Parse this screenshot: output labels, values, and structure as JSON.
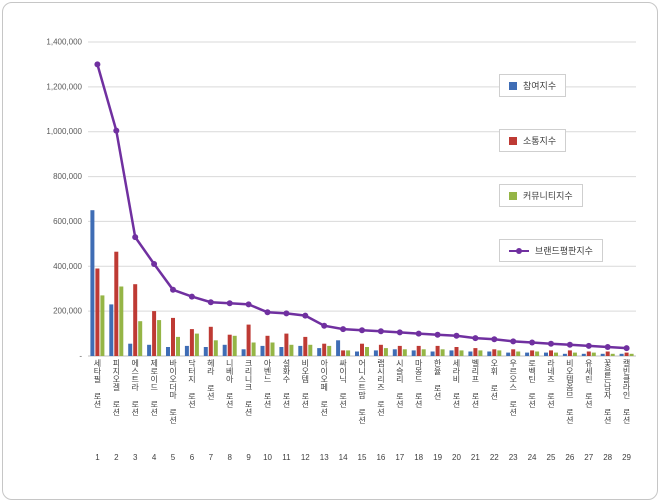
{
  "chart_data": {
    "type": "combo-bar-line",
    "title": "",
    "xlabel": "",
    "ylabel": "",
    "ylim": [
      0,
      1400000
    ],
    "ytick_step": 200000,
    "ytick_labels": [
      "1,400,000",
      "1,200,000",
      "1,000,000",
      "800,000",
      "600,000",
      "400,000",
      "200,000",
      "-"
    ],
    "grid": true,
    "legend_position": "right-inside",
    "categories": [
      "세타필 로션",
      "피지오겔 로션",
      "에스트라 로션",
      "제로이드 로션",
      "바이오더마 로션",
      "닥터지 로션",
      "헤라 로션",
      "니베아 로션",
      "크리니크 로션",
      "아벤느 로션",
      "설화수 로션",
      "비오템 로션",
      "아이오페 로션",
      "싸이닉 로션",
      "어니스트맘 로션",
      "랩시리즈 로션",
      "시슬리 로션",
      "마몽드 로션",
      "한율 로션",
      "세라비 로션",
      "벨리프 로션",
      "오휘 로션",
      "우르오스 로션",
      "로벡틴 로션",
      "라네즈 로션",
      "비오템옴므 로션",
      "유세린 로션",
      "꽃을든남자 로션",
      "캘빈클라인 로션"
    ],
    "category_ranks": [
      "1",
      "2",
      "3",
      "4",
      "5",
      "6",
      "7",
      "8",
      "9",
      "10",
      "11",
      "12",
      "13",
      "14",
      "15",
      "16",
      "17",
      "18",
      "19",
      "20",
      "21",
      "22",
      "23",
      "24",
      "25",
      "26",
      "27",
      "28",
      "29"
    ],
    "series": [
      {
        "name": "참여지수",
        "chart": "bar",
        "color": "#3F6DB5",
        "values": [
          650000,
          230000,
          55000,
          50000,
          40000,
          45000,
          40000,
          50000,
          30000,
          45000,
          40000,
          45000,
          35000,
          70000,
          20000,
          25000,
          30000,
          25000,
          20000,
          25000,
          20000,
          20000,
          15000,
          15000,
          15000,
          10000,
          10000,
          10000,
          10000
        ]
      },
      {
        "name": "소통지수",
        "chart": "bar",
        "color": "#BE3A34",
        "values": [
          390000,
          465000,
          320000,
          200000,
          170000,
          120000,
          130000,
          95000,
          140000,
          90000,
          100000,
          85000,
          55000,
          25000,
          55000,
          50000,
          45000,
          45000,
          45000,
          40000,
          35000,
          30000,
          30000,
          25000,
          25000,
          25000,
          20000,
          20000,
          15000
        ]
      },
      {
        "name": "커뮤니티지수",
        "chart": "bar",
        "color": "#95B546",
        "values": [
          270000,
          310000,
          155000,
          160000,
          85000,
          100000,
          70000,
          90000,
          60000,
          60000,
          50000,
          50000,
          45000,
          25000,
          40000,
          35000,
          30000,
          30000,
          30000,
          25000,
          25000,
          25000,
          20000,
          20000,
          15000,
          15000,
          15000,
          10000,
          10000
        ]
      },
      {
        "name": "브랜드평판지수",
        "chart": "line",
        "color": "#7030A0",
        "values": [
          1300000,
          1005000,
          530000,
          410000,
          295000,
          265000,
          240000,
          235000,
          230000,
          195000,
          190000,
          180000,
          135000,
          120000,
          115000,
          110000,
          105000,
          100000,
          95000,
          90000,
          80000,
          75000,
          65000,
          60000,
          55000,
          50000,
          45000,
          40000,
          35000
        ]
      }
    ]
  }
}
